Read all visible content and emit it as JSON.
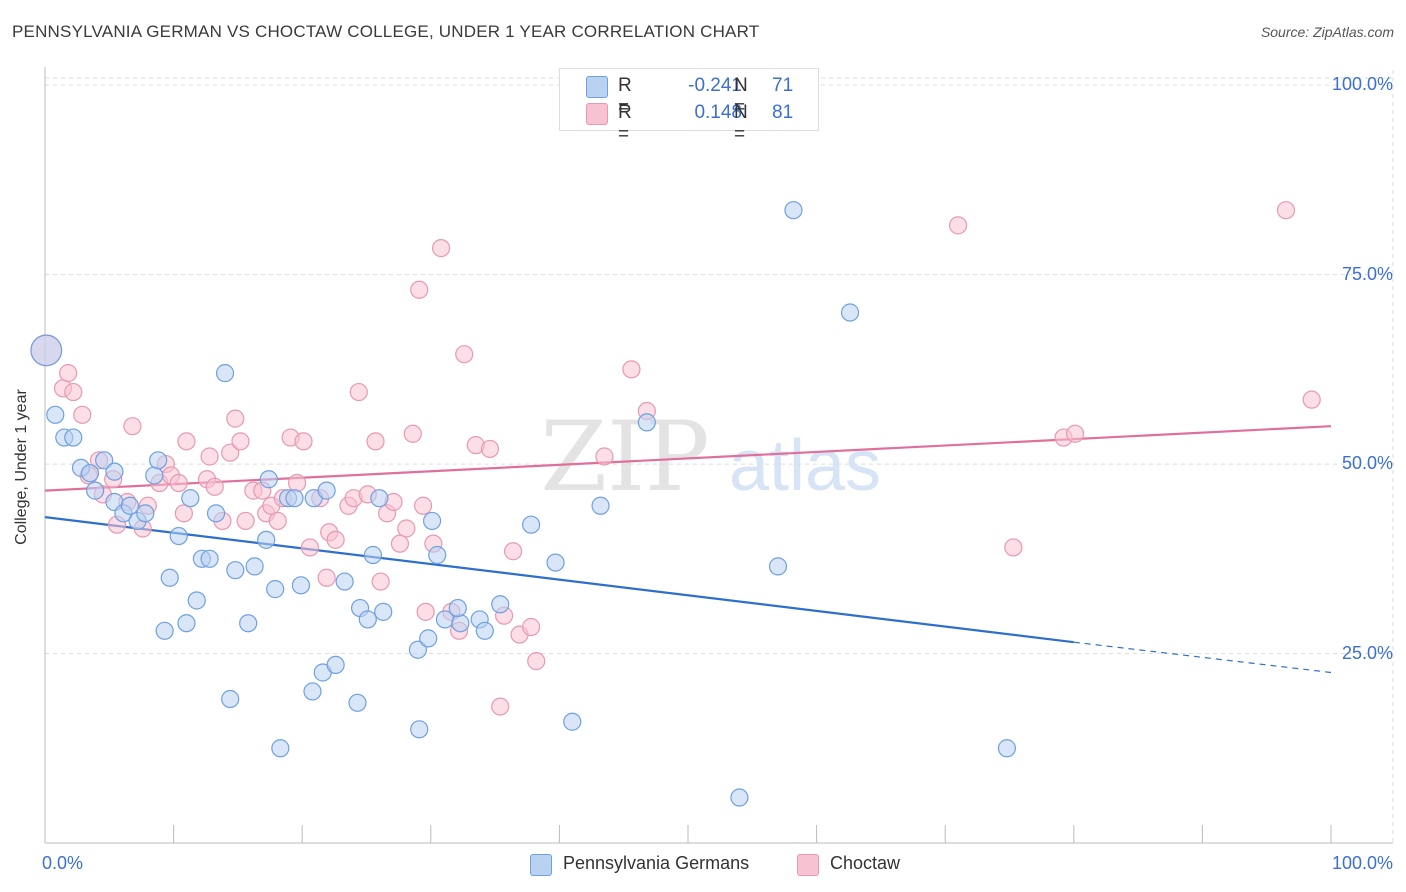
{
  "title": "PENNSYLVANIA GERMAN VS CHOCTAW COLLEGE, UNDER 1 YEAR CORRELATION CHART",
  "source": "Source: ZipAtlas.com",
  "watermark": {
    "zip": "ZIP",
    "atlas": "atlas"
  },
  "colors": {
    "blue_fill": "#b9d2f2",
    "blue_stroke": "#6fa0e0",
    "blue_line": "#2e6fce",
    "pink_fill": "#f7c3d2",
    "pink_stroke": "#e899b2",
    "pink_line": "#e0709a",
    "tick_text": "#3b6fd1",
    "grid": "#dddddd"
  },
  "legend": {
    "rows": [
      {
        "r_label": "R =",
        "r_value": "-0.241",
        "n_label": "N =",
        "n_value": "71"
      },
      {
        "r_label": "R =",
        "r_value": "0.148",
        "n_label": "N =",
        "n_value": "81"
      }
    ]
  },
  "bottom_legend": {
    "series1": "Pennsylvania Germans",
    "series2": "Choctaw"
  },
  "x_tick_labels": {
    "min": "0.0%",
    "max": "100.0%"
  },
  "y_tick_labels": [
    "100.0%",
    "75.0%",
    "50.0%",
    "25.0%"
  ],
  "chart_data": {
    "type": "scatter",
    "title": "PENNSYLVANIA GERMAN VS CHOCTAW COLLEGE, UNDER 1 YEAR CORRELATION CHART",
    "xlabel": "",
    "ylabel": "College, Under 1 year",
    "xlim": [
      0,
      100
    ],
    "ylim": [
      0,
      102
    ],
    "y_ticks": [
      25,
      50,
      75,
      100
    ],
    "grid": true,
    "series": [
      {
        "name": "Pennsylvania Germans",
        "trend": {
          "x": [
            0,
            80,
            100
          ],
          "y": [
            43.0,
            26.5,
            22.5
          ],
          "solid_until": 80
        },
        "points": [
          [
            0.1,
            65.0,
            1.8
          ],
          [
            0.8,
            56.5,
            1
          ],
          [
            1.5,
            53.5,
            1
          ],
          [
            2.2,
            53.5,
            1
          ],
          [
            2.8,
            49.5,
            1
          ],
          [
            3.5,
            48.8,
            1
          ],
          [
            3.9,
            46.5,
            1
          ],
          [
            4.6,
            50.5,
            1
          ],
          [
            5.4,
            49.0,
            1
          ],
          [
            5.4,
            45.0,
            1
          ],
          [
            6.1,
            43.5,
            1
          ],
          [
            6.6,
            44.5,
            1
          ],
          [
            7.2,
            42.5,
            1
          ],
          [
            7.8,
            43.5,
            1
          ],
          [
            8.5,
            48.5,
            1
          ],
          [
            8.8,
            50.5,
            1
          ],
          [
            9.3,
            28.0,
            1
          ],
          [
            9.7,
            35.0,
            1
          ],
          [
            10.4,
            40.5,
            1
          ],
          [
            11.0,
            29.0,
            1
          ],
          [
            11.3,
            45.5,
            1
          ],
          [
            11.8,
            32.0,
            1
          ],
          [
            12.2,
            37.5,
            1
          ],
          [
            12.8,
            37.5,
            1
          ],
          [
            13.3,
            43.5,
            1
          ],
          [
            14.0,
            62.0,
            1
          ],
          [
            14.4,
            19.0,
            1
          ],
          [
            14.8,
            36.0,
            1
          ],
          [
            15.8,
            29.0,
            1
          ],
          [
            16.3,
            36.5,
            1
          ],
          [
            17.2,
            40.0,
            1
          ],
          [
            17.4,
            48.0,
            1
          ],
          [
            17.9,
            33.5,
            1
          ],
          [
            18.3,
            12.5,
            1
          ],
          [
            18.9,
            45.5,
            1
          ],
          [
            19.4,
            45.5,
            1
          ],
          [
            19.9,
            34.0,
            1
          ],
          [
            20.9,
            45.5,
            1
          ],
          [
            20.8,
            20.0,
            1
          ],
          [
            21.6,
            22.5,
            1
          ],
          [
            21.9,
            46.5,
            1
          ],
          [
            22.6,
            23.5,
            1
          ],
          [
            23.3,
            34.5,
            1
          ],
          [
            24.3,
            18.5,
            1
          ],
          [
            24.5,
            31.0,
            1
          ],
          [
            25.1,
            29.5,
            1
          ],
          [
            25.5,
            38.0,
            1
          ],
          [
            26.0,
            45.5,
            1
          ],
          [
            26.3,
            30.5,
            1
          ],
          [
            29.0,
            25.5,
            1
          ],
          [
            29.1,
            15.0,
            1
          ],
          [
            29.8,
            27.0,
            1
          ],
          [
            30.1,
            42.5,
            1
          ],
          [
            30.5,
            38.0,
            1
          ],
          [
            31.1,
            29.5,
            1
          ],
          [
            32.3,
            29.0,
            1
          ],
          [
            32.1,
            31.0,
            1
          ],
          [
            33.8,
            29.5,
            1
          ],
          [
            34.2,
            28.0,
            1
          ],
          [
            35.4,
            31.5,
            1
          ],
          [
            37.8,
            42.0,
            1
          ],
          [
            39.7,
            37.0,
            1
          ],
          [
            41.0,
            16.0,
            1
          ],
          [
            43.2,
            44.5,
            1
          ],
          [
            46.8,
            55.5,
            1
          ],
          [
            54.0,
            6.0,
            1
          ],
          [
            57.0,
            36.5,
            1
          ],
          [
            58.2,
            83.5,
            1
          ],
          [
            62.6,
            70.0,
            1
          ],
          [
            74.8,
            12.5,
            1
          ]
        ]
      },
      {
        "name": "Choctaw",
        "trend": {
          "x": [
            0,
            100
          ],
          "y": [
            46.5,
            55.0
          ]
        },
        "points": [
          [
            0.1,
            65.0,
            1.8
          ],
          [
            1.4,
            60.0,
            1
          ],
          [
            1.8,
            62.0,
            1
          ],
          [
            2.2,
            59.5,
            1
          ],
          [
            2.9,
            56.5,
            1
          ],
          [
            3.4,
            48.5,
            1
          ],
          [
            4.2,
            50.5,
            1
          ],
          [
            4.5,
            46.0,
            1
          ],
          [
            5.3,
            48.0,
            1
          ],
          [
            5.6,
            42.0,
            1
          ],
          [
            6.4,
            45.0,
            1
          ],
          [
            6.8,
            55.0,
            1
          ],
          [
            7.6,
            41.5,
            1
          ],
          [
            8.0,
            44.5,
            1
          ],
          [
            8.9,
            47.5,
            1
          ],
          [
            9.4,
            50.0,
            1
          ],
          [
            9.8,
            48.5,
            1
          ],
          [
            10.4,
            47.5,
            1
          ],
          [
            10.8,
            43.5,
            1
          ],
          [
            11.0,
            53.0,
            1
          ],
          [
            12.6,
            48.0,
            1
          ],
          [
            12.8,
            51.0,
            1
          ],
          [
            13.2,
            47.0,
            1
          ],
          [
            13.8,
            42.5,
            1
          ],
          [
            14.4,
            51.5,
            1
          ],
          [
            14.8,
            56.0,
            1
          ],
          [
            15.2,
            53.0,
            1
          ],
          [
            15.6,
            42.5,
            1
          ],
          [
            16.2,
            46.5,
            1
          ],
          [
            16.9,
            46.5,
            1
          ],
          [
            17.2,
            43.5,
            1
          ],
          [
            17.6,
            44.5,
            1
          ],
          [
            18.1,
            42.5,
            1
          ],
          [
            18.5,
            45.5,
            1
          ],
          [
            19.1,
            53.5,
            1
          ],
          [
            19.6,
            47.5,
            1
          ],
          [
            20.1,
            53.0,
            1
          ],
          [
            20.6,
            39.0,
            1
          ],
          [
            21.4,
            45.5,
            1
          ],
          [
            21.9,
            35.0,
            1
          ],
          [
            22.1,
            41.0,
            1
          ],
          [
            22.6,
            40.0,
            1
          ],
          [
            23.6,
            44.5,
            1
          ],
          [
            24.0,
            45.5,
            1
          ],
          [
            24.4,
            59.5,
            1
          ],
          [
            25.1,
            46.0,
            1
          ],
          [
            25.7,
            53.0,
            1
          ],
          [
            26.1,
            34.5,
            1
          ],
          [
            26.6,
            43.5,
            1
          ],
          [
            27.1,
            45.0,
            1
          ],
          [
            27.6,
            39.5,
            1
          ],
          [
            28.1,
            41.5,
            1
          ],
          [
            28.6,
            54.0,
            1
          ],
          [
            29.1,
            73.0,
            1
          ],
          [
            29.4,
            44.5,
            1
          ],
          [
            29.6,
            30.5,
            1
          ],
          [
            30.2,
            39.5,
            1
          ],
          [
            30.8,
            78.5,
            1
          ],
          [
            31.6,
            30.5,
            1
          ],
          [
            32.2,
            28.0,
            1
          ],
          [
            32.6,
            64.5,
            1
          ],
          [
            33.5,
            52.5,
            1
          ],
          [
            34.6,
            52.0,
            1
          ],
          [
            35.4,
            18.0,
            1
          ],
          [
            35.7,
            30.0,
            1
          ],
          [
            36.4,
            38.5,
            1
          ],
          [
            36.9,
            27.5,
            1
          ],
          [
            37.8,
            28.5,
            1
          ],
          [
            38.2,
            24.0,
            1
          ],
          [
            43.5,
            51.0,
            1
          ],
          [
            45.6,
            62.5,
            1
          ],
          [
            46.8,
            57.0,
            1
          ],
          [
            71.0,
            81.5,
            1
          ],
          [
            75.3,
            39.0,
            1
          ],
          [
            79.2,
            53.5,
            1
          ],
          [
            80.1,
            54.0,
            1
          ],
          [
            96.5,
            83.5,
            1
          ],
          [
            98.5,
            58.5,
            1
          ]
        ]
      }
    ]
  }
}
